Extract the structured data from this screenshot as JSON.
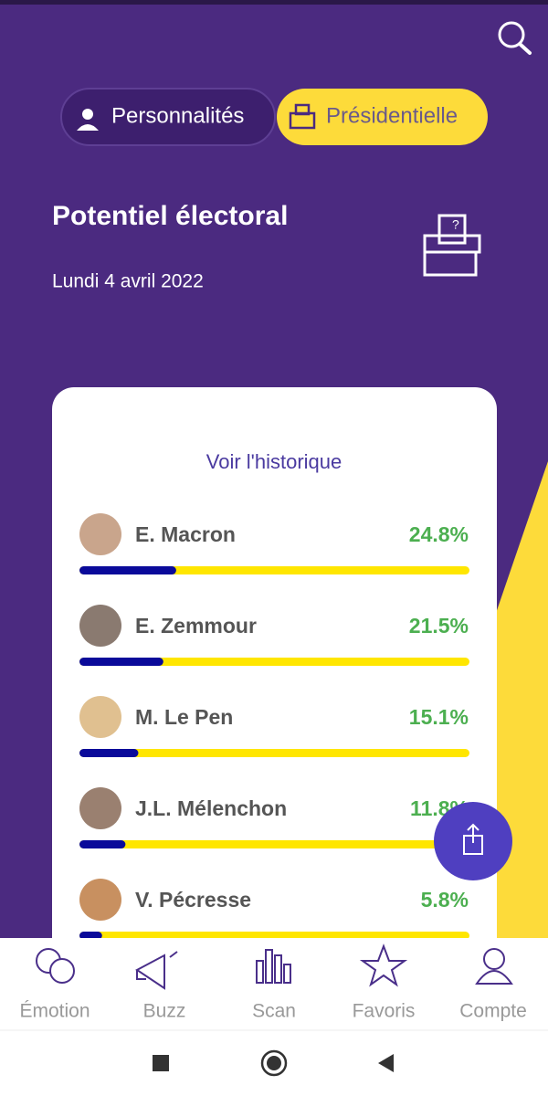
{
  "tabs": [
    "Personnalités",
    "Présidentielle"
  ],
  "header": {
    "title": "Potentiel électoral",
    "date": "Lundi 4 avril 2022"
  },
  "card": {
    "link": "Voir l'historique",
    "xlim": [
      0,
      100
    ],
    "candidates": [
      {
        "name": "E. Macron",
        "value": 24.8,
        "value_label": "24.8%"
      },
      {
        "name": "E. Zemmour",
        "value": 21.5,
        "value_label": "21.5%"
      },
      {
        "name": "M. Le Pen",
        "value": 15.1,
        "value_label": "15.1%"
      },
      {
        "name": "J.L. Mélenchon",
        "value": 11.8,
        "value_label": "11.8%"
      },
      {
        "name": "V. Pécresse",
        "value": 5.8,
        "value_label": "5.8%"
      }
    ]
  },
  "nav": [
    "Émotion",
    "Buzz",
    "Scan",
    "Favoris",
    "Compte"
  ]
}
